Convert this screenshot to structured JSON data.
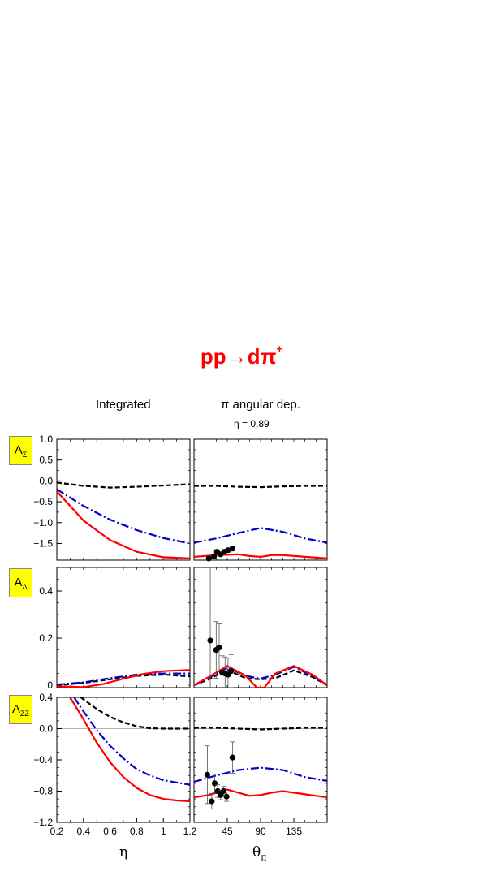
{
  "title": {
    "main": "pp→dπ",
    "sup": "+"
  },
  "columns": {
    "left": "Integrated",
    "right": "π angular dep.",
    "right_sub": "η = 0.89"
  },
  "rows": [
    {
      "label": "A",
      "sub": "Σ"
    },
    {
      "label": "A",
      "sub": "Δ"
    },
    {
      "label": "A",
      "sub": "ZZ"
    }
  ],
  "colors": {
    "red": "#ff0000",
    "blue": "#0000cc",
    "black": "#000000"
  },
  "chart_data": [
    {
      "type": "line",
      "panel": "A_Sigma integrated",
      "xlim": [
        0.2,
        1.2
      ],
      "ylim": [
        -1.9,
        1.0
      ],
      "yticks": [
        1.0,
        0.5,
        0.0,
        -0.5,
        -1.0,
        -1.5
      ],
      "ytick_labels": [
        "1.0",
        "0.5",
        "0.0",
        "−0.5",
        "−1.0",
        "−1.5"
      ],
      "series": [
        {
          "style": "dashed",
          "color": "black",
          "x": [
            0.2,
            0.4,
            0.6,
            0.8,
            1.0,
            1.2
          ],
          "y": [
            -0.04,
            -0.12,
            -0.16,
            -0.14,
            -0.11,
            -0.08
          ]
        },
        {
          "style": "dashdot",
          "color": "blue",
          "x": [
            0.2,
            0.4,
            0.6,
            0.8,
            1.0,
            1.2
          ],
          "y": [
            -0.2,
            -0.6,
            -0.93,
            -1.18,
            -1.37,
            -1.5
          ]
        },
        {
          "style": "solid",
          "color": "red",
          "x": [
            0.2,
            0.4,
            0.6,
            0.8,
            1.0,
            1.2
          ],
          "y": [
            -0.25,
            -0.95,
            -1.42,
            -1.7,
            -1.83,
            -1.86
          ]
        }
      ]
    },
    {
      "type": "line",
      "panel": "A_Sigma angular",
      "xlim": [
        0,
        180
      ],
      "ylim": [
        -1.9,
        1.0
      ],
      "series": [
        {
          "style": "dashed",
          "color": "black",
          "x": [
            0,
            30,
            60,
            90,
            120,
            150,
            180
          ],
          "y": [
            -0.12,
            -0.12,
            -0.14,
            -0.15,
            -0.13,
            -0.12,
            -0.12
          ]
        },
        {
          "style": "dashdot",
          "color": "blue",
          "x": [
            0,
            30,
            60,
            90,
            120,
            150,
            180
          ],
          "y": [
            -1.48,
            -1.38,
            -1.25,
            -1.13,
            -1.22,
            -1.38,
            -1.48
          ]
        },
        {
          "style": "solid",
          "color": "red",
          "x": [
            0,
            30,
            60,
            75,
            90,
            105,
            120,
            150,
            180
          ],
          "y": [
            -1.82,
            -1.78,
            -1.76,
            -1.8,
            -1.82,
            -1.78,
            -1.78,
            -1.82,
            -1.86
          ]
        }
      ],
      "points": {
        "x": [
          20,
          27,
          31,
          36,
          41,
          46,
          52
        ],
        "y": [
          -1.86,
          -1.81,
          -1.7,
          -1.76,
          -1.7,
          -1.66,
          -1.62
        ],
        "err": [
          0.04,
          0.04,
          0.05,
          0.04,
          0.05,
          0.05,
          0.06
        ]
      }
    },
    {
      "type": "line",
      "panel": "A_Delta integrated",
      "xlim": [
        0.2,
        1.2
      ],
      "ylim": [
        -0.01,
        0.5
      ],
      "yticks": [
        0.4,
        0.2,
        0.0
      ],
      "ytick_labels": [
        "0.4",
        "0.2",
        "0"
      ],
      "series": [
        {
          "style": "dashed",
          "color": "black",
          "x": [
            0.2,
            0.4,
            0.6,
            0.8,
            1.0,
            1.2
          ],
          "y": [
            0.0,
            0.01,
            0.025,
            0.04,
            0.045,
            0.038
          ]
        },
        {
          "style": "dashdot",
          "color": "blue",
          "x": [
            0.2,
            0.4,
            0.6,
            0.8,
            1.0,
            1.2
          ],
          "y": [
            0.003,
            0.012,
            0.03,
            0.045,
            0.05,
            0.05
          ]
        },
        {
          "style": "solid",
          "color": "red",
          "x": [
            0.2,
            0.4,
            0.55,
            0.7,
            0.85,
            1.0,
            1.2
          ],
          "y": [
            -0.005,
            -0.008,
            0.005,
            0.028,
            0.048,
            0.06,
            0.065
          ]
        }
      ]
    },
    {
      "type": "line",
      "panel": "A_Delta angular",
      "xlim": [
        0,
        180
      ],
      "ylim": [
        -0.01,
        0.5
      ],
      "series": [
        {
          "style": "dashed",
          "color": "black",
          "x": [
            0,
            20,
            45,
            70,
            90,
            110,
            135,
            160,
            180
          ],
          "y": [
            0.0,
            0.025,
            0.065,
            0.03,
            0.025,
            0.03,
            0.063,
            0.035,
            0.0
          ]
        },
        {
          "style": "dashdot",
          "color": "blue",
          "x": [
            0,
            20,
            45,
            70,
            90,
            110,
            135,
            160,
            180
          ],
          "y": [
            0.0,
            0.03,
            0.075,
            0.04,
            0.028,
            0.045,
            0.078,
            0.04,
            0.0
          ]
        },
        {
          "style": "solid",
          "color": "red",
          "x": [
            0,
            20,
            45,
            70,
            85,
            95,
            110,
            135,
            160,
            180
          ],
          "y": [
            0.0,
            0.035,
            0.082,
            0.04,
            -0.01,
            -0.01,
            0.05,
            0.082,
            0.045,
            0.0
          ]
        }
      ],
      "points": {
        "x": [
          22,
          30,
          34,
          38,
          42,
          46,
          50
        ],
        "y": [
          0.19,
          0.15,
          0.16,
          0.055,
          0.05,
          0.045,
          0.06
        ],
        "err": [
          0.33,
          0.12,
          0.1,
          0.07,
          0.07,
          0.07,
          0.07
        ]
      }
    },
    {
      "type": "line",
      "panel": "A_zz integrated",
      "xlim": [
        0.2,
        1.2
      ],
      "ylim": [
        -1.2,
        0.4
      ],
      "xticks": [
        0.2,
        0.4,
        0.6,
        0.8,
        1.0,
        1.2
      ],
      "xtick_labels": [
        "0.2",
        "0.4",
        "0.6",
        "0.8",
        "1",
        "1.2"
      ],
      "yticks": [
        0.4,
        0.0,
        -0.4,
        -0.8,
        -1.2
      ],
      "ytick_labels": [
        "0.4",
        "0.0",
        "−0.4",
        "−0.8",
        "−1.2"
      ],
      "xlabel": "η",
      "series": [
        {
          "style": "dashed",
          "color": "black",
          "x": [
            0.38,
            0.5,
            0.6,
            0.7,
            0.8,
            0.9,
            1.0,
            1.2
          ],
          "y": [
            0.4,
            0.25,
            0.15,
            0.08,
            0.03,
            0.005,
            0.0,
            0.0
          ]
        },
        {
          "style": "dashdot",
          "color": "blue",
          "x": [
            0.33,
            0.4,
            0.5,
            0.6,
            0.7,
            0.8,
            0.9,
            1.0,
            1.2
          ],
          "y": [
            0.4,
            0.22,
            -0.02,
            -0.22,
            -0.38,
            -0.52,
            -0.6,
            -0.66,
            -0.72
          ]
        },
        {
          "style": "solid",
          "color": "red",
          "x": [
            0.3,
            0.4,
            0.5,
            0.6,
            0.7,
            0.8,
            0.9,
            1.0,
            1.1,
            1.2
          ],
          "y": [
            0.4,
            0.12,
            -0.18,
            -0.43,
            -0.62,
            -0.76,
            -0.85,
            -0.9,
            -0.92,
            -0.93
          ]
        }
      ]
    },
    {
      "type": "line",
      "panel": "A_zz angular",
      "xlim": [
        0,
        180
      ],
      "ylim": [
        -1.2,
        0.4
      ],
      "xticks": [
        45,
        90,
        135
      ],
      "xtick_labels": [
        "45",
        "90",
        "135"
      ],
      "xlabel": "θ",
      "xlabel_sub": "π",
      "series": [
        {
          "style": "dashed",
          "color": "black",
          "x": [
            0,
            30,
            60,
            90,
            120,
            150,
            180
          ],
          "y": [
            0.01,
            0.01,
            0.0,
            -0.01,
            0.0,
            0.01,
            0.01
          ]
        },
        {
          "style": "dashdot",
          "color": "blue",
          "x": [
            0,
            30,
            60,
            90,
            120,
            150,
            180
          ],
          "y": [
            -0.68,
            -0.6,
            -0.53,
            -0.5,
            -0.53,
            -0.62,
            -0.67
          ]
        },
        {
          "style": "solid",
          "color": "red",
          "x": [
            0,
            20,
            45,
            60,
            75,
            90,
            105,
            120,
            150,
            180
          ],
          "y": [
            -0.88,
            -0.85,
            -0.78,
            -0.82,
            -0.86,
            -0.85,
            -0.82,
            -0.8,
            -0.84,
            -0.88
          ]
        }
      ],
      "points": {
        "x": [
          18,
          24,
          28,
          32,
          36,
          40,
          44,
          52
        ],
        "y": [
          -0.59,
          -0.93,
          -0.7,
          -0.8,
          -0.85,
          -0.8,
          -0.87,
          -0.37
        ],
        "err": [
          0.37,
          0.1,
          0.12,
          0.08,
          0.06,
          0.06,
          0.06,
          0.2
        ]
      }
    }
  ]
}
